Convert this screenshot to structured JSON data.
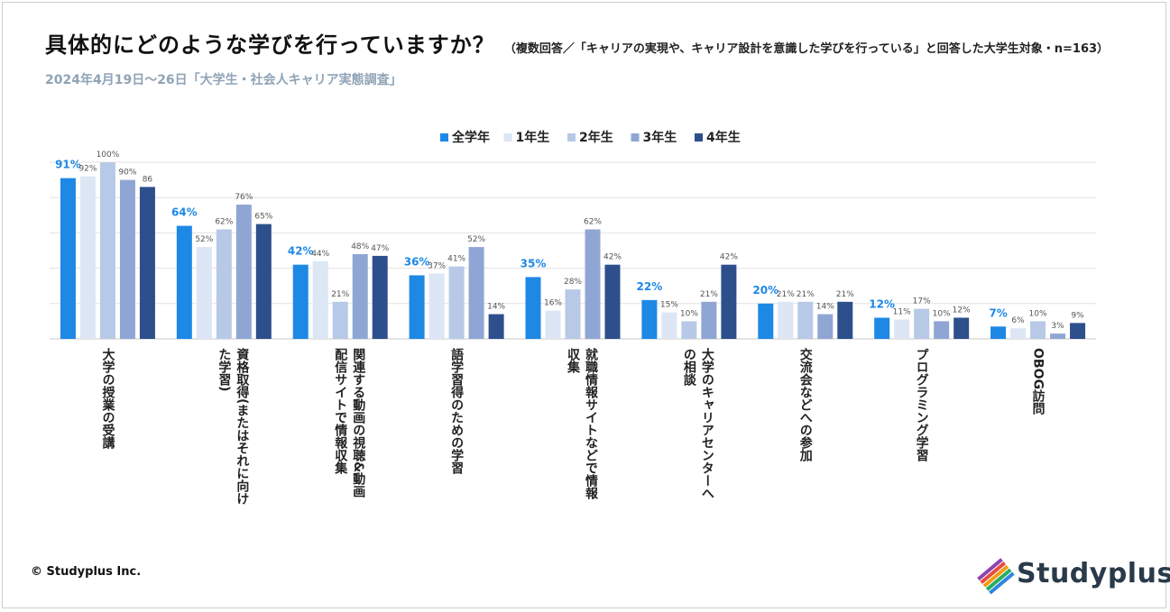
{
  "header": {
    "title": "具体的にどのような学びを行っていますか？",
    "note": "（複数回答／「キャリアの実現や、キャリア設計を意識した学びを行っている」と回答した大学生対象・n=163）",
    "subtitle": "2024年4月19日～26日「大学生・社会人キャリア実態調査」"
  },
  "footer": {
    "copyright": "© Studyplus Inc.",
    "logo_text": "Studyplus"
  },
  "colors": {
    "全学年": "#1e88e5",
    "1年生": "#dce6f4",
    "2年生": "#b7c9e6",
    "3年生": "#8fa6d4",
    "4年生": "#2d4f8c",
    "first_label": "#1e88e5",
    "grid": "#e3e3e3"
  },
  "chart_data": {
    "type": "bar",
    "title": "具体的にどのような学びを行っていますか？",
    "legend_position": "top-center",
    "ylim": [
      0,
      100
    ],
    "grid": true,
    "categories": [
      "大学の授業の受講",
      "資格取得(またはそれに向けた学習)",
      "関連する動画の視聴&動画配信サイトで情報収集",
      "語学習得のための学習",
      "就職情報サイトなどで情報収集",
      "大学のキャリアセンターへの相談",
      "交流会などへの参加",
      "プログラミング学習",
      "OBOG訪問"
    ],
    "category_lines": [
      [
        "大学の授業の受講"
      ],
      [
        "資格取得(またはそれに向け",
        "た学習)"
      ],
      [
        "関連する動画の視聴&動画",
        "配信サイトで情報収集"
      ],
      [
        "語学習得のための学習"
      ],
      [
        "就職情報サイトなどで情報",
        "収集"
      ],
      [
        "大学のキャリアセンターへ",
        "の相談"
      ],
      [
        "交流会などへの参加"
      ],
      [
        "プログラミング学習"
      ],
      [
        "OBOG訪問"
      ]
    ],
    "series": [
      {
        "name": "全学年",
        "values": [
          91,
          64,
          42,
          36,
          35,
          22,
          20,
          12,
          7
        ],
        "labels": [
          "91%",
          "64%",
          "42%",
          "36%",
          "35%",
          "22%",
          "20%",
          "12%",
          "7%"
        ]
      },
      {
        "name": "1年生",
        "values": [
          92,
          52,
          44,
          37,
          16,
          15,
          21,
          11,
          6
        ],
        "labels": [
          "92%",
          "52%",
          "44%",
          "37%",
          "16%",
          "15%",
          "21%",
          "11%",
          "6%"
        ]
      },
      {
        "name": "2年生",
        "values": [
          100,
          62,
          21,
          41,
          28,
          10,
          21,
          17,
          10
        ],
        "labels": [
          "100%",
          "62%",
          "21%",
          "41%",
          "28%",
          "10%",
          "21%",
          "17%",
          "10%"
        ]
      },
      {
        "name": "3年生",
        "values": [
          90,
          76,
          48,
          52,
          62,
          21,
          14,
          10,
          3
        ],
        "labels": [
          "90%",
          "76%",
          "48%",
          "52%",
          "62%",
          "21%",
          "14%",
          "10%",
          "3%"
        ]
      },
      {
        "name": "4年生",
        "values": [
          86,
          65,
          47,
          14,
          42,
          42,
          21,
          12,
          9
        ],
        "labels": [
          "86",
          "65%",
          "47%",
          "14%",
          "42%",
          "42%",
          "21%",
          "12%",
          "9%"
        ]
      }
    ]
  }
}
